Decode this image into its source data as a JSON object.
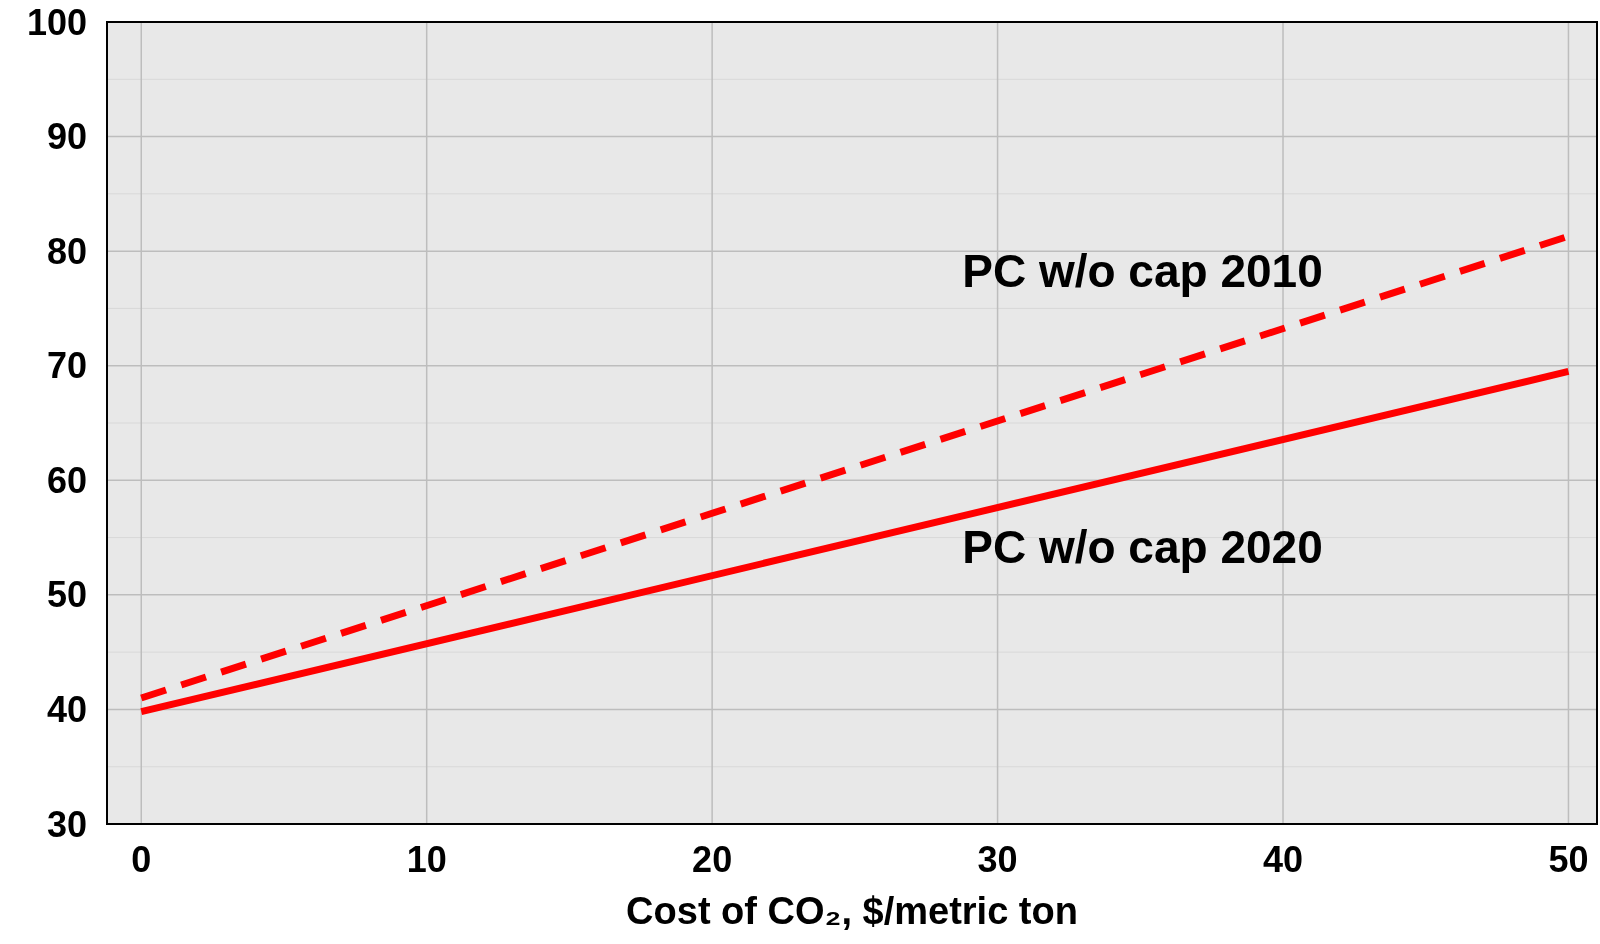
{
  "chart_data": {
    "type": "line",
    "xlabel": "Cost of CO₂, $/metric ton",
    "xlim": [
      -1.2,
      51
    ],
    "xticks": [
      0,
      10,
      20,
      30,
      40,
      50
    ],
    "ylim": [
      30,
      100
    ],
    "yticks": [
      30,
      {
        "value": 35,
        "label": null
      },
      40,
      {
        "value": 45,
        "label": null
      },
      50,
      {
        "value": 55,
        "label": null
      },
      60,
      {
        "value": 65,
        "label": null
      },
      70,
      {
        "value": 75,
        "label": null
      },
      80,
      {
        "value": 85,
        "label": null
      },
      90,
      {
        "value": 95,
        "label": null
      },
      100
    ],
    "grid": true,
    "x": [
      0,
      50
    ],
    "series": [
      {
        "name": "PC w/o cap 2010",
        "color": "#ff0000",
        "line_style": "dashed",
        "values": [
          41,
          81.3
        ]
      },
      {
        "name": "PC w/o cap 2020",
        "color": "#ff0000",
        "line_style": "solid",
        "values": [
          39.8,
          69.5
        ]
      }
    ]
  }
}
